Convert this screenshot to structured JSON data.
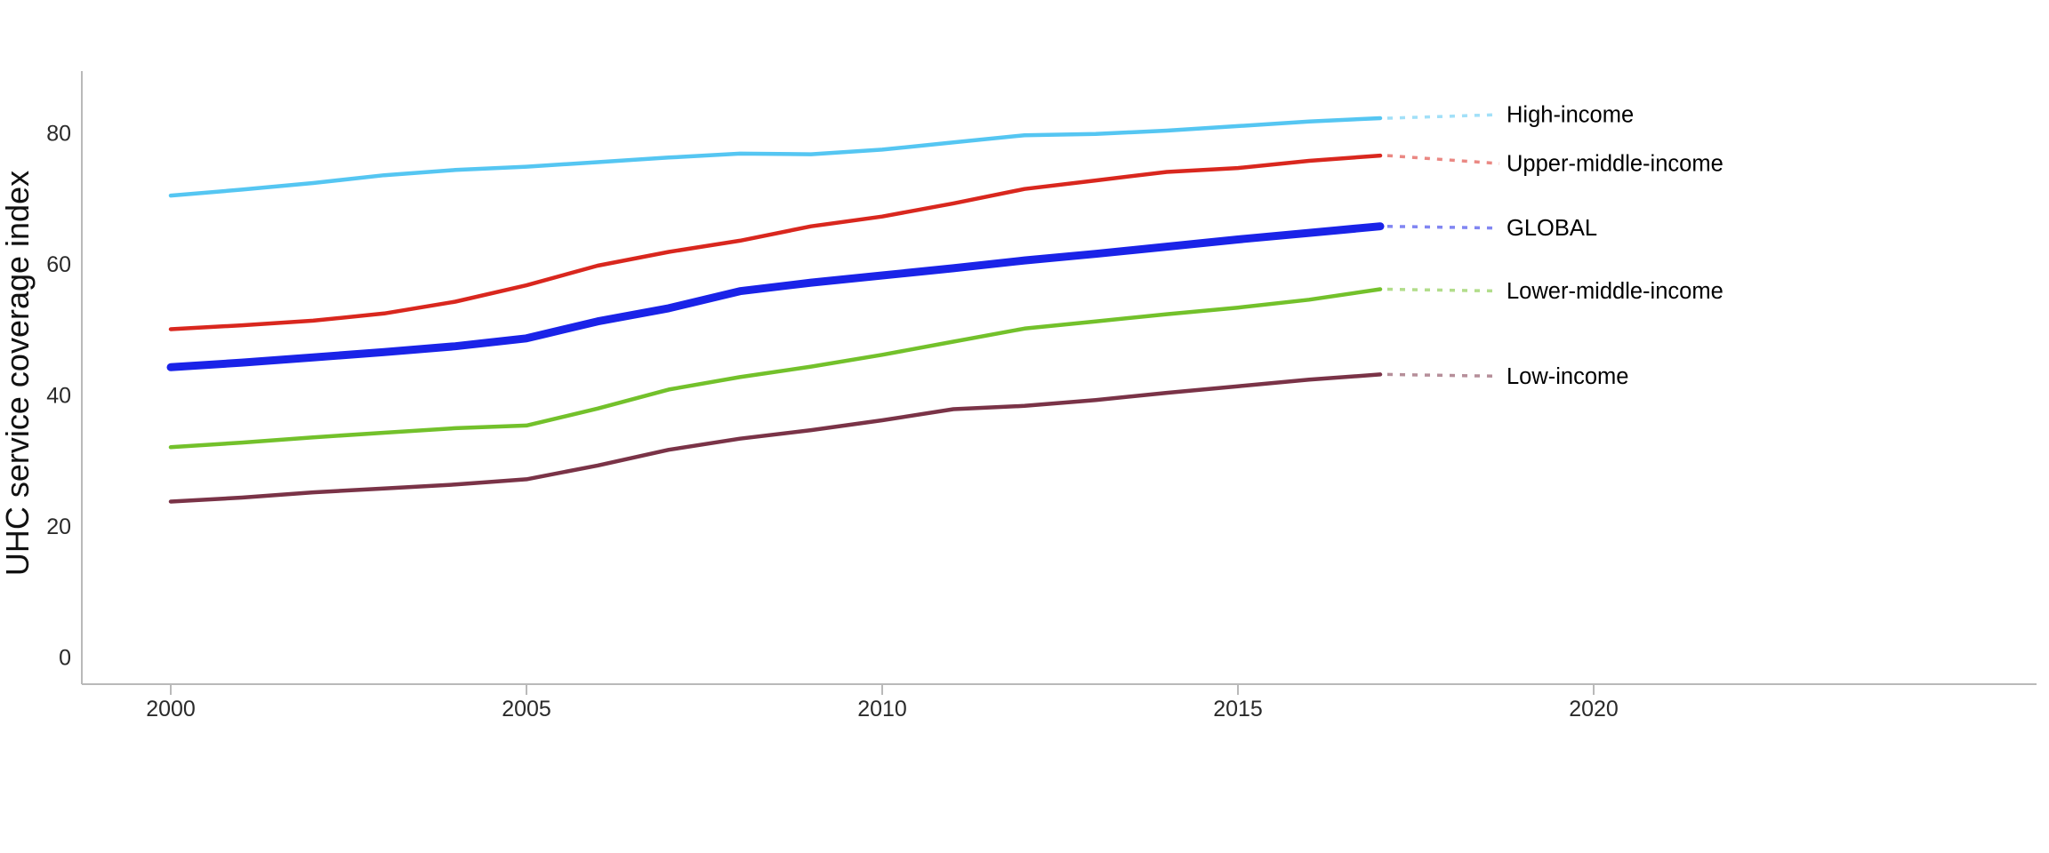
{
  "figure": {
    "description": "Line chart of UHC service coverage index by income group, 2000-2017"
  },
  "chart_data": {
    "type": "line",
    "title": "",
    "xlabel": "",
    "ylabel": "UHC service coverage index",
    "grid": false,
    "legend_position": "end-of-line-labels",
    "x_range": [
      1998.75,
      2026.2
    ],
    "y_range": [
      -4,
      89.5
    ],
    "x_ticks": [
      {
        "label": "2000",
        "year": 2000
      },
      {
        "label": "2005",
        "year": 2005
      },
      {
        "label": "2010",
        "year": 2010
      },
      {
        "label": "2015",
        "year": 2015
      },
      {
        "label": "2020",
        "year": 2020
      }
    ],
    "y_ticks": [
      {
        "label": "0",
        "value": 0
      },
      {
        "label": "20",
        "value": 20
      },
      {
        "label": "40",
        "value": 40
      },
      {
        "label": "60",
        "value": 60
      },
      {
        "label": "80",
        "value": 80
      }
    ],
    "x": [
      2000,
      2001,
      2002,
      2003,
      2004,
      2005,
      2006,
      2007,
      2008,
      2009,
      2010,
      2011,
      2012,
      2013,
      2014,
      2015,
      2016,
      2017
    ],
    "series": [
      {
        "name": "High-income",
        "color": "#55C6F2",
        "line_width": 4.5,
        "values": [
          70.5,
          71.4,
          72.4,
          73.6,
          74.4,
          74.9,
          75.6,
          76.3,
          76.9,
          76.8,
          77.5,
          78.6,
          79.7,
          79.9,
          80.4,
          81.1,
          81.8,
          82.3
        ]
      },
      {
        "name": "Upper-middle-income",
        "color": "#D9271E",
        "line_width": 4.5,
        "values": [
          50.1,
          50.7,
          51.4,
          52.5,
          54.3,
          56.8,
          59.8,
          61.9,
          63.6,
          65.8,
          67.3,
          69.3,
          71.5,
          72.8,
          74.1,
          74.7,
          75.8,
          76.6
        ]
      },
      {
        "name": "GLOBAL",
        "color": "#1A23E8",
        "line_width": 9,
        "values": [
          44.3,
          45.0,
          45.8,
          46.6,
          47.5,
          48.7,
          51.3,
          53.3,
          55.9,
          57.2,
          58.3,
          59.4,
          60.6,
          61.6,
          62.7,
          63.8,
          64.8,
          65.8
        ]
      },
      {
        "name": "Lower-middle-income",
        "color": "#73C12B",
        "line_width": 4.5,
        "values": [
          32.1,
          32.8,
          33.6,
          34.3,
          35.0,
          35.4,
          38.0,
          40.9,
          42.8,
          44.4,
          46.2,
          48.2,
          50.2,
          51.3,
          52.4,
          53.4,
          54.6,
          56.2
        ]
      },
      {
        "name": "Low-income",
        "color": "#7A3347",
        "line_width": 4.5,
        "values": [
          23.8,
          24.4,
          25.2,
          25.8,
          26.4,
          27.2,
          29.3,
          31.7,
          33.4,
          34.7,
          36.2,
          37.9,
          38.4,
          39.3,
          40.4,
          41.4,
          42.4,
          43.2
        ]
      }
    ]
  }
}
